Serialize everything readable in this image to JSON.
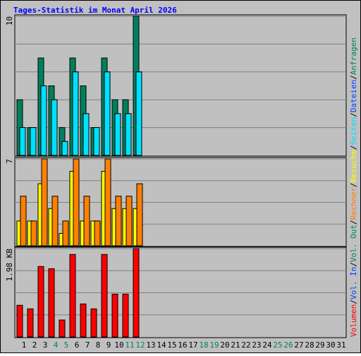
{
  "title": "Tages-Statistik im Monat April 2026",
  "separator": "/",
  "chart_data": [
    {
      "type": "bar",
      "ylim": [
        0,
        10
      ],
      "yticks": [
        10
      ],
      "grid": [
        2,
        4,
        6,
        8
      ],
      "series": [
        {
          "name": "Anfragen",
          "color": "#00805c",
          "values": [
            4,
            2,
            7,
            5,
            2,
            7,
            5,
            2,
            7,
            4,
            4,
            10,
            null,
            null,
            null,
            null,
            null,
            null,
            null,
            null,
            null,
            null,
            null,
            null,
            null,
            null,
            null,
            null,
            null,
            null,
            null
          ]
        },
        {
          "name": "Dateien",
          "color": "#0040ff",
          "values": [
            2,
            2,
            5,
            4,
            1,
            6,
            3,
            2,
            6,
            3,
            3,
            6,
            null,
            null,
            null,
            null,
            null,
            null,
            null,
            null,
            null,
            null,
            null,
            null,
            null,
            null,
            null,
            null,
            null,
            null,
            null
          ]
        },
        {
          "name": "Seiten",
          "color": "#00e0ff",
          "values": [
            2,
            2,
            5,
            4,
            1,
            6,
            3,
            2,
            6,
            3,
            3,
            6,
            null,
            null,
            null,
            null,
            null,
            null,
            null,
            null,
            null,
            null,
            null,
            null,
            null,
            null,
            null,
            null,
            null,
            null,
            null
          ]
        }
      ]
    },
    {
      "type": "bar",
      "ylim": [
        0,
        7
      ],
      "yticks": [
        7
      ],
      "grid": [
        1.75,
        3.5,
        5.25
      ],
      "series": [
        {
          "name": "Besuche",
          "color": "#ffff00",
          "values": [
            2,
            2,
            5,
            3,
            1,
            6,
            2,
            2,
            6,
            3,
            3,
            3,
            null,
            null,
            null,
            null,
            null,
            null,
            null,
            null,
            null,
            null,
            null,
            null,
            null,
            null,
            null,
            null,
            null,
            null,
            null
          ]
        },
        {
          "name": "Rechner",
          "color": "#ff8000",
          "values": [
            4,
            2,
            7,
            4,
            2,
            7,
            4,
            2,
            7,
            4,
            4,
            5,
            null,
            null,
            null,
            null,
            null,
            null,
            null,
            null,
            null,
            null,
            null,
            null,
            null,
            null,
            null,
            null,
            null,
            null,
            null
          ]
        }
      ]
    },
    {
      "type": "bar",
      "ylim": [
        0,
        1.98
      ],
      "yticks": [
        {
          "value": 1.98,
          "label": "1.98 KB"
        }
      ],
      "grid": [
        0.495,
        0.99,
        1.485
      ],
      "categories": [
        "1",
        "2",
        "3",
        "4",
        "5",
        "6",
        "7",
        "8",
        "9",
        "10",
        "11",
        "12",
        "13",
        "14",
        "15",
        "16",
        "17",
        "18",
        "19",
        "20",
        "21",
        "22",
        "23",
        "24",
        "25",
        "26",
        "27",
        "28",
        "29",
        "30",
        "31"
      ],
      "highlighted_categories": [
        3,
        4,
        10,
        11,
        17,
        18,
        24,
        25
      ],
      "highlight_color": "#00805c",
      "series": [
        {
          "name": "Volumen",
          "color": "#ff0000",
          "values": [
            0.71,
            0.63,
            1.58,
            1.53,
            0.38,
            1.85,
            0.74,
            0.63,
            1.85,
            0.96,
            0.96,
            1.98,
            null,
            null,
            null,
            null,
            null,
            null,
            null,
            null,
            null,
            null,
            null,
            null,
            null,
            null,
            null,
            null,
            null,
            null,
            null
          ]
        }
      ],
      "legend_only": [
        {
          "name": "Vol. In",
          "color": "#0040ff"
        },
        {
          "name": "Vol. Out",
          "color": "#00805c"
        }
      ]
    }
  ]
}
